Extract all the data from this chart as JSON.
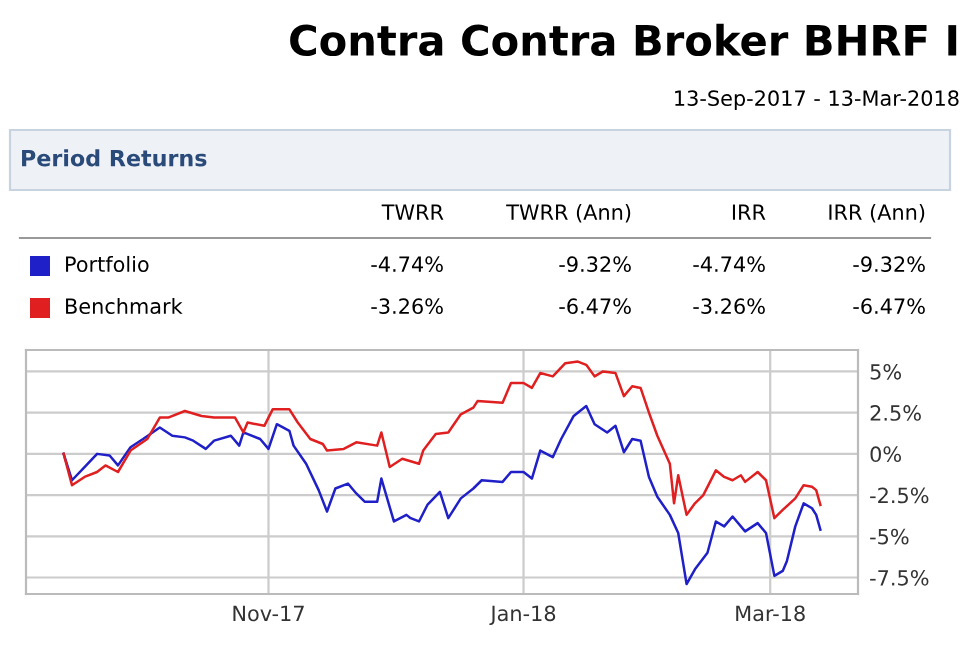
{
  "chart_data": {
    "type": "line",
    "title": "Contra Contra Broker BHRF I",
    "subtitle": "13-Sep-2017 - 13-Mar-2018",
    "annotations": [
      "Period Returns",
      "TWRR",
      "TWRR (Ann)",
      "IRR",
      "IRR (Ann)",
      "-4.74%",
      "-9.32%",
      "-4.74%",
      "-9.32%",
      "-3.26%",
      "-6.47%",
      "-3.26%",
      "-6.47%"
    ],
    "series": [
      {
        "name": "Portfolio",
        "color": "#2020c8",
        "x": [
          "2017-09-13",
          "2017-09-15",
          "2017-09-18",
          "2017-09-21",
          "2017-09-24",
          "2017-09-26",
          "2017-09-29",
          "2017-10-02",
          "2017-10-06",
          "2017-10-09",
          "2017-10-12",
          "2017-10-14",
          "2017-10-17",
          "2017-10-19",
          "2017-10-23",
          "2017-10-25",
          "2017-10-26",
          "2017-10-30",
          "2017-11-01",
          "2017-11-03",
          "2017-11-06",
          "2017-11-07",
          "2017-11-10",
          "2017-11-13",
          "2017-11-15",
          "2017-11-17",
          "2017-11-20",
          "2017-11-22",
          "2017-11-24",
          "2017-11-27",
          "2017-11-28",
          "2017-12-01",
          "2017-12-04",
          "2017-12-05",
          "2017-12-07",
          "2017-12-09",
          "2017-12-12",
          "2017-12-14",
          "2017-12-17",
          "2017-12-20",
          "2017-12-22",
          "2017-12-27",
          "2017-12-29",
          "2018-01-01",
          "2018-01-03",
          "2018-01-05",
          "2018-01-08",
          "2018-01-10",
          "2018-01-13",
          "2018-01-16",
          "2018-01-18",
          "2018-01-21",
          "2018-01-23",
          "2018-01-25",
          "2018-01-27",
          "2018-01-29",
          "2018-01-31",
          "2018-02-02",
          "2018-02-05",
          "2018-02-07",
          "2018-02-09",
          "2018-02-11",
          "2018-02-14",
          "2018-02-16",
          "2018-02-18",
          "2018-02-20",
          "2018-02-23",
          "2018-02-26",
          "2018-02-28",
          "2018-03-02",
          "2018-03-04",
          "2018-03-05",
          "2018-03-07",
          "2018-03-09",
          "2018-03-11",
          "2018-03-12",
          "2018-03-13"
        ],
        "values": [
          0,
          -1.6,
          -0.8,
          0,
          -0.1,
          -0.7,
          0.4,
          0.9,
          1.6,
          1.1,
          1.0,
          0.8,
          0.3,
          0.8,
          1.1,
          0.5,
          1.3,
          0.9,
          0.3,
          1.8,
          1.4,
          0.5,
          -0.6,
          -2.2,
          -3.5,
          -2.1,
          -1.8,
          -2.4,
          -2.9,
          -2.9,
          -1.5,
          -4.1,
          -3.7,
          -3.9,
          -4.1,
          -3.1,
          -2.3,
          -3.9,
          -2.7,
          -2.1,
          -1.6,
          -1.7,
          -1.1,
          -1.1,
          -1.5,
          0.2,
          -0.2,
          0.9,
          2.3,
          2.9,
          1.8,
          1.3,
          1.7,
          0.1,
          0.9,
          0.8,
          -1.4,
          -2.6,
          -3.7,
          -4.8,
          -7.9,
          -7.0,
          -6.0,
          -4.1,
          -4.4,
          -3.8,
          -4.7,
          -4.2,
          -4.8,
          -7.4,
          -7.1,
          -6.5,
          -4.4,
          -3.0,
          -3.3,
          -3.7,
          -4.6
        ]
      },
      {
        "name": "Benchmark",
        "color": "#e02020",
        "x": [
          "2017-09-13",
          "2017-09-15",
          "2017-09-18",
          "2017-09-21",
          "2017-09-23",
          "2017-09-26",
          "2017-09-29",
          "2017-10-03",
          "2017-10-06",
          "2017-10-08",
          "2017-10-12",
          "2017-10-16",
          "2017-10-19",
          "2017-10-24",
          "2017-10-26",
          "2017-10-27",
          "2017-10-31",
          "2017-11-02",
          "2017-11-06",
          "2017-11-08",
          "2017-11-11",
          "2017-11-14",
          "2017-11-15",
          "2017-11-19",
          "2017-11-22",
          "2017-11-27",
          "2017-11-28",
          "2017-11-30",
          "2017-12-03",
          "2017-12-07",
          "2017-12-08",
          "2017-12-11",
          "2017-12-14",
          "2017-12-17",
          "2017-12-20",
          "2017-12-21",
          "2017-12-27",
          "2017-12-29",
          "2018-01-01",
          "2018-01-03",
          "2018-01-05",
          "2018-01-08",
          "2018-01-11",
          "2018-01-14",
          "2018-01-16",
          "2018-01-18",
          "2018-01-20",
          "2018-01-23",
          "2018-01-25",
          "2018-01-27",
          "2018-01-29",
          "2018-01-31",
          "2018-02-02",
          "2018-02-05",
          "2018-02-06",
          "2018-02-07",
          "2018-02-09",
          "2018-02-11",
          "2018-02-13",
          "2018-02-16",
          "2018-02-18",
          "2018-02-20",
          "2018-02-22",
          "2018-02-23",
          "2018-02-26",
          "2018-02-28",
          "2018-03-02",
          "2018-03-04",
          "2018-03-07",
          "2018-03-09",
          "2018-03-11",
          "2018-03-12",
          "2018-03-13"
        ],
        "values": [
          0,
          -1.9,
          -1.4,
          -1.1,
          -0.7,
          -1.1,
          0.2,
          0.9,
          2.2,
          2.2,
          2.6,
          2.3,
          2.2,
          2.2,
          1.3,
          1.9,
          1.7,
          2.7,
          2.7,
          1.9,
          0.9,
          0.6,
          0.2,
          0.3,
          0.7,
          0.5,
          1.3,
          -0.8,
          -0.3,
          -0.6,
          0.2,
          1.2,
          1.3,
          2.4,
          2.8,
          3.2,
          3.1,
          4.3,
          4.3,
          4.0,
          4.9,
          4.7,
          5.5,
          5.6,
          5.4,
          4.7,
          5.0,
          4.9,
          3.5,
          4.1,
          4.0,
          2.5,
          1.1,
          -0.6,
          -3.0,
          -1.3,
          -3.7,
          -3.0,
          -2.5,
          -1.0,
          -1.4,
          -1.6,
          -1.3,
          -1.7,
          -1.1,
          -1.6,
          -3.9,
          -3.4,
          -2.7,
          -1.9,
          -2.0,
          -2.2,
          -3.1
        ]
      }
    ],
    "xlim": [
      "2017-09-04",
      "2018-03-22"
    ],
    "xticks": [
      {
        "value": "2017-11-01",
        "label": "Nov-17"
      },
      {
        "value": "2018-01-01",
        "label": "Jan-18"
      },
      {
        "value": "2018-03-01",
        "label": "Mar-18"
      }
    ],
    "ylim": [
      -8.5,
      6.3
    ],
    "yticks": [
      {
        "value": -7.5,
        "label": "-7.5%"
      },
      {
        "value": -5,
        "label": "-5%"
      },
      {
        "value": -2.5,
        "label": "-2.5%"
      },
      {
        "value": 0,
        "label": "0%"
      },
      {
        "value": 2.5,
        "label": "2.5%"
      },
      {
        "value": 5,
        "label": "5%"
      }
    ],
    "grid": true,
    "legend": "top left",
    "marker": "none",
    "line_style": "solid"
  }
}
